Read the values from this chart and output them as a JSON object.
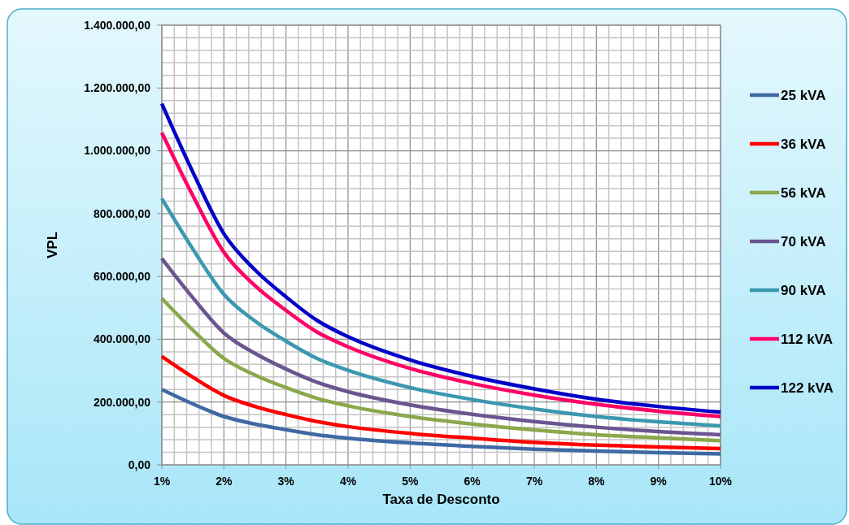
{
  "chart_data": {
    "type": "line",
    "xlabel": "Taxa de Desconto",
    "ylabel": "VPL",
    "x": [
      1,
      1.5,
      2,
      2.5,
      3,
      3.5,
      4,
      5,
      6,
      7,
      8,
      9,
      10
    ],
    "series": [
      {
        "name": "25 kVA",
        "color": "#4069a3",
        "values": [
          240000,
          194000,
          154000,
          130000,
          112000,
          96000,
          85000,
          70000,
          59000,
          50000,
          44000,
          39000,
          35000
        ]
      },
      {
        "name": "36 kVA",
        "color": "#ff0000",
        "values": [
          345000,
          279000,
          221000,
          186000,
          160000,
          138000,
          122000,
          100000,
          85000,
          72000,
          63000,
          57000,
          52000
        ]
      },
      {
        "name": "56 kVA",
        "color": "#8aa84b",
        "values": [
          530000,
          429000,
          339000,
          286000,
          246000,
          212000,
          188000,
          154000,
          130000,
          111000,
          96000,
          86000,
          77000
        ]
      },
      {
        "name": "70 kVA",
        "color": "#6b5590",
        "values": [
          657000,
          532000,
          420000,
          355000,
          305000,
          263000,
          233000,
          191000,
          161000,
          138000,
          120000,
          106000,
          96000
        ]
      },
      {
        "name": "90 kVA",
        "color": "#3b98b0",
        "values": [
          848000,
          687000,
          543000,
          458000,
          394000,
          339000,
          301000,
          246000,
          208000,
          178000,
          154000,
          137000,
          124000
        ]
      },
      {
        "name": "112 kVA",
        "color": "#ff0066",
        "values": [
          1058000,
          857000,
          677000,
          571000,
          492000,
          423000,
          376000,
          307000,
          259000,
          222000,
          193000,
          171000,
          154000
        ]
      },
      {
        "name": "122 kVA",
        "color": "#0000c8",
        "values": [
          1150000,
          932000,
          736000,
          621000,
          535000,
          460000,
          408000,
          334000,
          282000,
          242000,
          209000,
          186000,
          168000
        ]
      }
    ],
    "xlim": [
      1,
      10
    ],
    "xticks": [
      {
        "value": 1,
        "label": "1%"
      },
      {
        "value": 1.2,
        "label": null
      },
      {
        "value": 1.4,
        "label": null
      },
      {
        "value": 1.6,
        "label": null
      },
      {
        "value": 1.8,
        "label": null
      },
      {
        "value": 2,
        "label": "2%"
      },
      {
        "value": 2.2,
        "label": null
      },
      {
        "value": 2.4,
        "label": null
      },
      {
        "value": 2.6,
        "label": null
      },
      {
        "value": 2.8,
        "label": null
      },
      {
        "value": 3,
        "label": "3%"
      },
      {
        "value": 3.2,
        "label": null
      },
      {
        "value": 3.4,
        "label": null
      },
      {
        "value": 3.6,
        "label": null
      },
      {
        "value": 3.8,
        "label": null
      },
      {
        "value": 4,
        "label": "4%"
      },
      {
        "value": 4.2,
        "label": null
      },
      {
        "value": 4.4,
        "label": null
      },
      {
        "value": 4.6,
        "label": null
      },
      {
        "value": 4.8,
        "label": null
      },
      {
        "value": 5,
        "label": "5%"
      },
      {
        "value": 5.2,
        "label": null
      },
      {
        "value": 5.4,
        "label": null
      },
      {
        "value": 5.6,
        "label": null
      },
      {
        "value": 5.8,
        "label": null
      },
      {
        "value": 6,
        "label": "6%"
      },
      {
        "value": 6.2,
        "label": null
      },
      {
        "value": 6.4,
        "label": null
      },
      {
        "value": 6.6,
        "label": null
      },
      {
        "value": 6.8,
        "label": null
      },
      {
        "value": 7,
        "label": "7%"
      },
      {
        "value": 7.2,
        "label": null
      },
      {
        "value": 7.4,
        "label": null
      },
      {
        "value": 7.6,
        "label": null
      },
      {
        "value": 7.8,
        "label": null
      },
      {
        "value": 8,
        "label": "8%"
      },
      {
        "value": 8.2,
        "label": null
      },
      {
        "value": 8.4,
        "label": null
      },
      {
        "value": 8.6,
        "label": null
      },
      {
        "value": 8.8,
        "label": null
      },
      {
        "value": 9,
        "label": "9%"
      },
      {
        "value": 9.2,
        "label": null
      },
      {
        "value": 9.4,
        "label": null
      },
      {
        "value": 9.6,
        "label": null
      },
      {
        "value": 9.8,
        "label": null
      },
      {
        "value": 10,
        "label": "10%"
      }
    ],
    "ylim": [
      0,
      1400000
    ],
    "yticks": [
      {
        "value": 0,
        "label": "0,00"
      },
      {
        "value": 40000,
        "label": null
      },
      {
        "value": 80000,
        "label": null
      },
      {
        "value": 120000,
        "label": null
      },
      {
        "value": 160000,
        "label": null
      },
      {
        "value": 200000,
        "label": "200.000,00"
      },
      {
        "value": 240000,
        "label": null
      },
      {
        "value": 280000,
        "label": null
      },
      {
        "value": 320000,
        "label": null
      },
      {
        "value": 360000,
        "label": null
      },
      {
        "value": 400000,
        "label": "400.000,00"
      },
      {
        "value": 440000,
        "label": null
      },
      {
        "value": 480000,
        "label": null
      },
      {
        "value": 520000,
        "label": null
      },
      {
        "value": 560000,
        "label": null
      },
      {
        "value": 600000,
        "label": "600.000,00"
      },
      {
        "value": 640000,
        "label": null
      },
      {
        "value": 680000,
        "label": null
      },
      {
        "value": 720000,
        "label": null
      },
      {
        "value": 760000,
        "label": null
      },
      {
        "value": 800000,
        "label": "800.000,00"
      },
      {
        "value": 840000,
        "label": null
      },
      {
        "value": 880000,
        "label": null
      },
      {
        "value": 920000,
        "label": null
      },
      {
        "value": 960000,
        "label": null
      },
      {
        "value": 1000000,
        "label": "1.000.000,00"
      },
      {
        "value": 1040000,
        "label": null
      },
      {
        "value": 1080000,
        "label": null
      },
      {
        "value": 1120000,
        "label": null
      },
      {
        "value": 1160000,
        "label": null
      },
      {
        "value": 1200000,
        "label": "1.200.000,00"
      },
      {
        "value": 1240000,
        "label": null
      },
      {
        "value": 1280000,
        "label": null
      },
      {
        "value": 1320000,
        "label": null
      },
      {
        "value": 1360000,
        "label": null
      },
      {
        "value": 1400000,
        "label": "1.400.000,00"
      }
    ],
    "grid": true,
    "legend": "right",
    "marker": "none",
    "line_style": "solid"
  }
}
